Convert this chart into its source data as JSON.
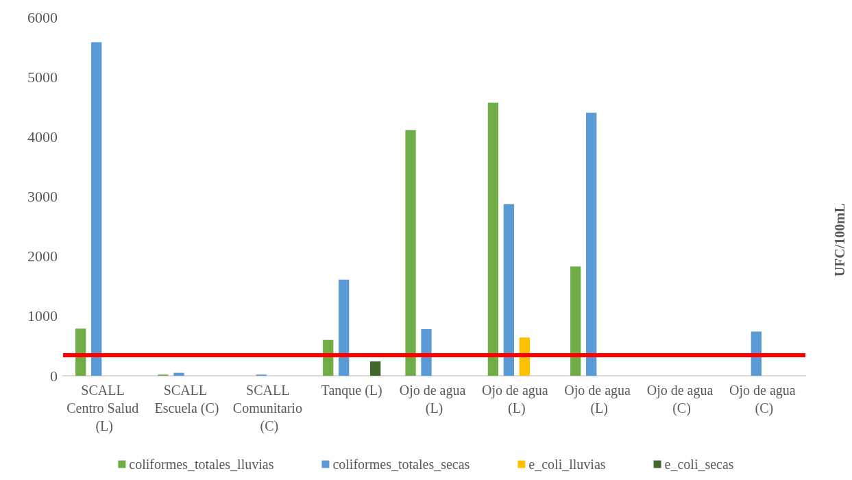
{
  "chart_data": {
    "type": "bar",
    "ylabel": "UFC/100mL",
    "categories": [
      "SCALL Centro Salud (L)",
      "SCALL Escuela (C)",
      "SCALL Comunitario (C)",
      "Tanque (L)",
      "Ojo de agua (L)",
      "Ojo de agua (L)",
      "Ojo de agua (L)",
      "Ojo de agua (C)",
      "Ojo de agua (C)"
    ],
    "series": [
      {
        "name": "coliformes_totales_lluvias",
        "color": "#70ad47",
        "values": [
          790,
          20,
          null,
          600,
          4110,
          4570,
          1830,
          null,
          null
        ]
      },
      {
        "name": "coliformes_totales_secas",
        "color": "#5b9bd5",
        "values": [
          5580,
          50,
          20,
          1610,
          780,
          2870,
          4400,
          null,
          740
        ]
      },
      {
        "name": "e_coli_lluvias",
        "color": "#ffc000",
        "values": [
          null,
          null,
          null,
          null,
          null,
          640,
          null,
          null,
          null
        ]
      },
      {
        "name": "e_coli_secas",
        "color": "#43682b",
        "values": [
          null,
          null,
          null,
          240,
          null,
          null,
          null,
          null,
          null
        ]
      }
    ],
    "ylim": [
      0,
      6000
    ],
    "yticks": [
      0,
      1000,
      2000,
      3000,
      4000,
      5000,
      6000
    ],
    "ref_lines": [
      {
        "axis": "y",
        "value": 350,
        "color": "#ff0000"
      }
    ],
    "grid": false,
    "legend": "bottom"
  }
}
